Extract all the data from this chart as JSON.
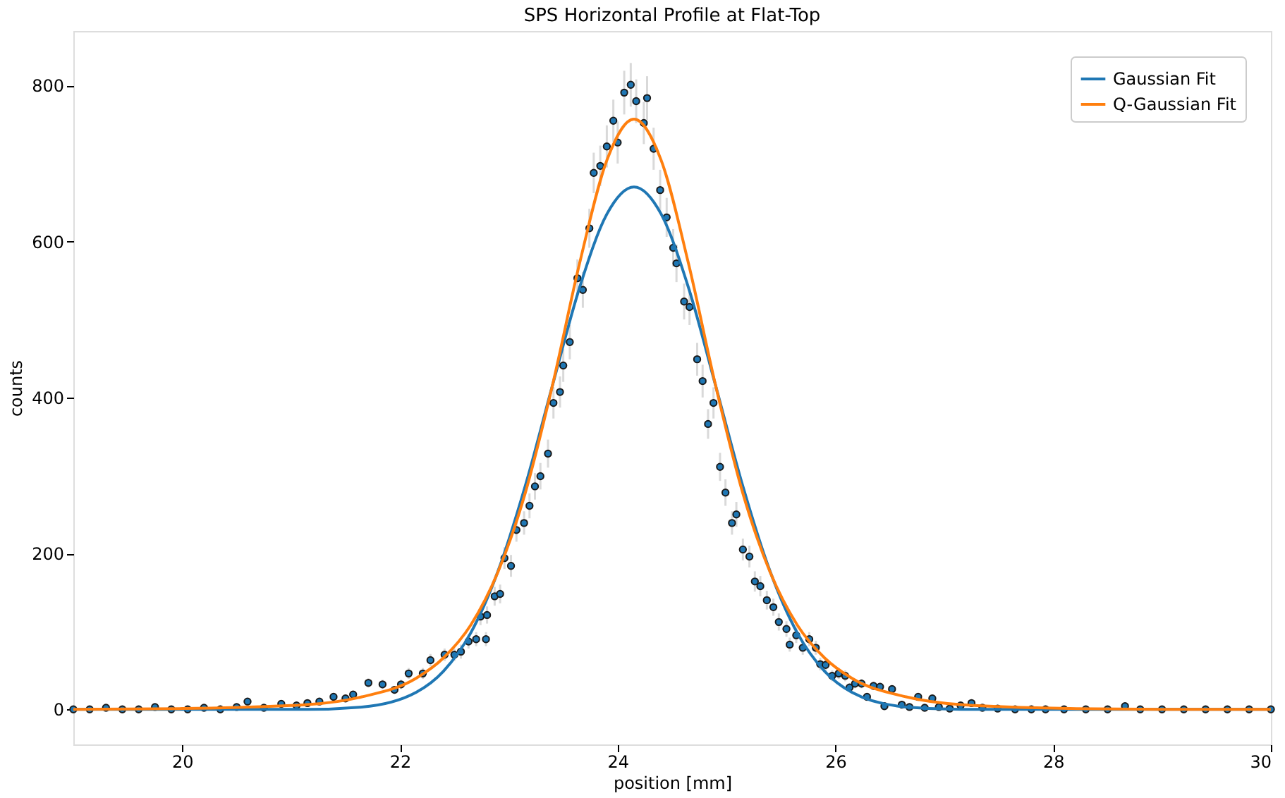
{
  "chart_data": {
    "type": "scatter",
    "title": "SPS Horizontal Profile at Flat-Top",
    "xlabel": "position [mm]",
    "ylabel": "counts",
    "xlim": [
      19,
      30
    ],
    "ylim": [
      -45,
      870
    ],
    "xticks": [
      20,
      22,
      24,
      26,
      28,
      30
    ],
    "yticks": [
      0,
      200,
      400,
      600,
      800
    ],
    "grid": false,
    "legend": "top right",
    "marker": "circle",
    "series": [
      {
        "color": "#1f77b4",
        "x": [
          19.0,
          19.15,
          19.3,
          19.45,
          19.6,
          19.75,
          19.9,
          20.05,
          20.2,
          20.35,
          20.5,
          20.6,
          20.75,
          20.91,
          21.05,
          21.15,
          21.26,
          21.39,
          21.5,
          21.57,
          21.71,
          21.84,
          21.95,
          22.01,
          22.08,
          22.21,
          22.28,
          22.41,
          22.5,
          22.56,
          22.63,
          22.7,
          22.74,
          22.79,
          22.8,
          22.87,
          22.92,
          22.96,
          23.02,
          23.07,
          23.14,
          23.19,
          23.24,
          23.29,
          23.36,
          23.41,
          23.47,
          23.5,
          23.56,
          23.63,
          23.68,
          23.74,
          23.78,
          23.84,
          23.9,
          23.96,
          24.0,
          24.06,
          24.12,
          24.17,
          24.24,
          24.27,
          24.33,
          24.39,
          24.45,
          24.51,
          24.54,
          24.61,
          24.66,
          24.73,
          24.78,
          24.83,
          24.88,
          24.94,
          24.99,
          25.05,
          25.09,
          25.15,
          25.21,
          25.26,
          25.31,
          25.37,
          25.43,
          25.48,
          25.55,
          25.58,
          25.64,
          25.7,
          25.76,
          25.82,
          25.86,
          25.91,
          25.97,
          26.03,
          26.09,
          26.13,
          26.18,
          26.24,
          26.29,
          26.35,
          26.41,
          26.45,
          26.52,
          26.61,
          26.68,
          26.76,
          26.82,
          26.89,
          26.95,
          27.05,
          27.15,
          27.25,
          27.35,
          27.49,
          27.65,
          27.8,
          27.93,
          28.1,
          28.3,
          28.5,
          28.66,
          28.8,
          29.0,
          29.2,
          29.4,
          29.6,
          29.8,
          30.0
        ],
        "values": [
          0,
          0,
          2,
          0,
          0,
          3,
          0,
          0,
          2,
          0,
          3,
          10,
          2,
          7,
          5,
          8,
          10,
          16,
          14,
          19,
          34,
          32,
          25,
          32,
          46,
          46,
          63,
          70,
          70,
          74,
          87,
          90,
          119,
          90,
          121,
          145,
          148,
          194,
          184,
          230,
          239,
          261,
          286,
          299,
          328,
          393,
          407,
          441,
          471,
          553,
          538,
          617,
          688,
          697,
          722,
          755,
          727,
          791,
          801,
          780,
          752,
          784,
          719,
          666,
          631,
          592,
          572,
          523,
          516,
          449,
          421,
          366,
          393,
          311,
          278,
          239,
          250,
          205,
          196,
          164,
          158,
          140,
          131,
          112,
          103,
          83,
          95,
          79,
          90,
          79,
          58,
          57,
          43,
          46,
          43,
          28,
          33,
          33,
          16,
          30,
          29,
          4,
          26,
          6,
          3,
          16,
          2,
          14,
          3,
          1,
          5,
          8,
          2,
          1,
          0,
          0,
          0,
          0,
          0,
          0,
          4,
          0,
          0,
          0,
          0,
          0,
          0,
          0
        ],
        "errors": [
          1,
          1,
          1,
          1,
          1,
          2,
          1,
          1,
          1,
          1,
          2,
          3,
          1,
          3,
          2,
          3,
          3,
          4,
          4,
          4,
          6,
          6,
          5,
          6,
          7,
          7,
          8,
          8,
          8,
          9,
          9,
          9,
          11,
          9,
          11,
          12,
          12,
          14,
          14,
          15,
          15,
          16,
          17,
          17,
          18,
          20,
          20,
          21,
          22,
          24,
          23,
          25,
          26,
          26,
          27,
          27,
          27,
          28,
          28,
          28,
          27,
          28,
          27,
          26,
          25,
          24,
          24,
          23,
          23,
          21,
          21,
          19,
          20,
          18,
          17,
          15,
          16,
          14,
          14,
          13,
          13,
          12,
          11,
          11,
          10,
          9,
          10,
          9,
          9,
          9,
          8,
          8,
          7,
          7,
          7,
          5,
          6,
          6,
          4,
          5,
          5,
          2,
          5,
          2,
          2,
          4,
          1,
          4,
          2,
          1,
          2,
          3,
          1,
          1,
          1,
          1,
          1,
          1,
          1,
          1,
          2,
          1,
          1,
          1,
          1,
          1,
          1,
          1
        ]
      },
      {
        "type": "line",
        "name": "Gaussian Fit",
        "color": "#1f77b4",
        "marker": "none",
        "x": [
          19,
          20,
          21,
          21.15,
          21.65,
          22.15,
          22.4,
          22.65,
          22.9,
          23.15,
          23.4,
          23.65,
          23.9,
          24.15,
          24.4,
          24.65,
          24.9,
          25.15,
          25.4,
          25.65,
          25.9,
          26.15,
          26.65,
          27.15,
          28.15,
          29,
          30
        ],
        "values": [
          0,
          0,
          0,
          0,
          3,
          22,
          49,
          98,
          177,
          286,
          415,
          541,
          635,
          670,
          635,
          541,
          415,
          286,
          177,
          98,
          49,
          22,
          3,
          0,
          0,
          0,
          0
        ]
      },
      {
        "type": "line",
        "name": "Q-Gaussian Fit",
        "color": "#ff7f0e",
        "x": [
          19,
          20,
          21,
          21.15,
          21.65,
          22.15,
          22.4,
          22.65,
          22.9,
          23.15,
          23.4,
          23.65,
          23.9,
          24.15,
          24.4,
          24.65,
          24.9,
          25.15,
          25.4,
          25.65,
          25.9,
          26.15,
          26.65,
          27.15,
          28.15,
          29,
          30
        ],
        "values": [
          0,
          1,
          5,
          6,
          16,
          40,
          66,
          108,
          176,
          277,
          415,
          572,
          704,
          757,
          704,
          572,
          415,
          277,
          176,
          108,
          66,
          40,
          16,
          6,
          1,
          0,
          0
        ],
        "marker": "none"
      }
    ]
  }
}
